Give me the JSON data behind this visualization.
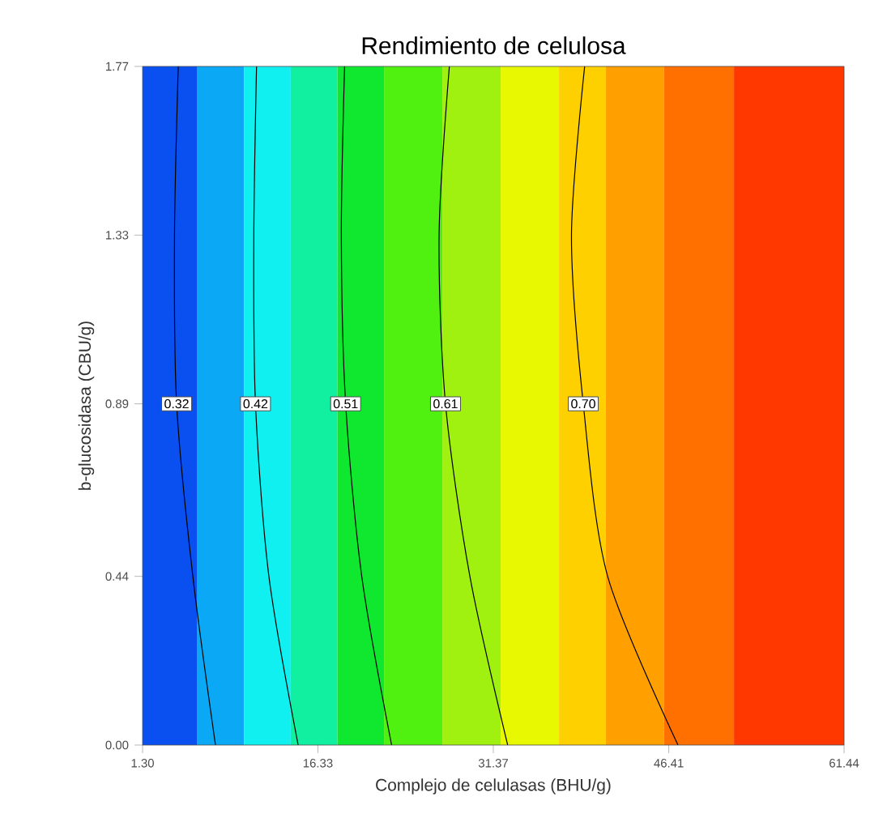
{
  "chart_data": {
    "type": "line",
    "title": "Rendimiento de celulosa",
    "xlabel": "Complejo de celulasas (BHU/g)",
    "ylabel": "b-glucosidasa (CBU/g)",
    "xlim": [
      1.3,
      61.44
    ],
    "ylim": [
      0,
      1.77
    ],
    "xticks": [
      {
        "value": 1.3,
        "label": "1.30"
      },
      {
        "value": 16.33,
        "label": "16.33"
      },
      {
        "value": 31.37,
        "label": "31.37"
      },
      {
        "value": 46.41,
        "label": "46.41"
      },
      {
        "value": 61.44,
        "label": "61.44"
      }
    ],
    "yticks": [
      {
        "value": 0,
        "label": "0.00"
      },
      {
        "value": 0.44,
        "label": "0.44"
      },
      {
        "value": 0.89,
        "label": "0.89"
      },
      {
        "value": 1.33,
        "label": "1.33"
      },
      {
        "value": 1.77,
        "label": "1.77"
      }
    ],
    "grid": false,
    "legend": false,
    "marker": "none",
    "line_style": "solid",
    "bands": [
      {
        "axis": "x",
        "from": 1.3,
        "to": 6,
        "color": "#0a50f0"
      },
      {
        "axis": "x",
        "from": 6,
        "to": 10,
        "color": "#0aa8f5"
      },
      {
        "axis": "x",
        "from": 10,
        "to": 14,
        "color": "#10f0f0"
      },
      {
        "axis": "x",
        "from": 14,
        "to": 18,
        "color": "#10f0a0"
      },
      {
        "axis": "x",
        "from": 18,
        "to": 22,
        "color": "#10e830"
      },
      {
        "axis": "x",
        "from": 22,
        "to": 27,
        "color": "#50f010"
      },
      {
        "axis": "x",
        "from": 27,
        "to": 32,
        "color": "#a0f010"
      },
      {
        "axis": "x",
        "from": 32,
        "to": 37,
        "color": "#e8f800"
      },
      {
        "axis": "x",
        "from": 37,
        "to": 41,
        "color": "#ffd000"
      },
      {
        "axis": "x",
        "from": 41,
        "to": 46,
        "color": "#ffa000"
      },
      {
        "axis": "x",
        "from": 46,
        "to": 52,
        "color": "#ff7000"
      },
      {
        "axis": "x",
        "from": 52,
        "to": 61.44,
        "color": "#ff3800"
      }
    ],
    "series": [
      {
        "name": "0.32",
        "color": "#000000",
        "x": [
          4.36,
          4.04,
          4.22,
          5.61,
          7.55
        ],
        "values": [
          1.77,
          1.33,
          0.89,
          0.44,
          0
        ]
      },
      {
        "name": "0.42",
        "color": "#000000",
        "x": [
          11.07,
          10.84,
          10.98,
          12.13,
          14.64
        ],
        "values": [
          1.77,
          1.33,
          0.89,
          0.44,
          0
        ]
      },
      {
        "name": "0.51",
        "color": "#000000",
        "x": [
          18.62,
          18.34,
          18.71,
          20.09,
          22.65
        ],
        "values": [
          1.77,
          1.33,
          0.89,
          0.44,
          0
        ]
      },
      {
        "name": "0.61",
        "color": "#000000",
        "x": [
          27.6,
          26.72,
          27.27,
          29.36,
          32.6
        ],
        "values": [
          1.77,
          1.33,
          0.89,
          0.44,
          0
        ]
      },
      {
        "name": "0.70",
        "color": "#000000",
        "x": [
          39.2,
          38.07,
          39.08,
          41.17,
          47.2
        ],
        "values": [
          1.77,
          1.33,
          0.89,
          0.44,
          0
        ]
      }
    ]
  }
}
